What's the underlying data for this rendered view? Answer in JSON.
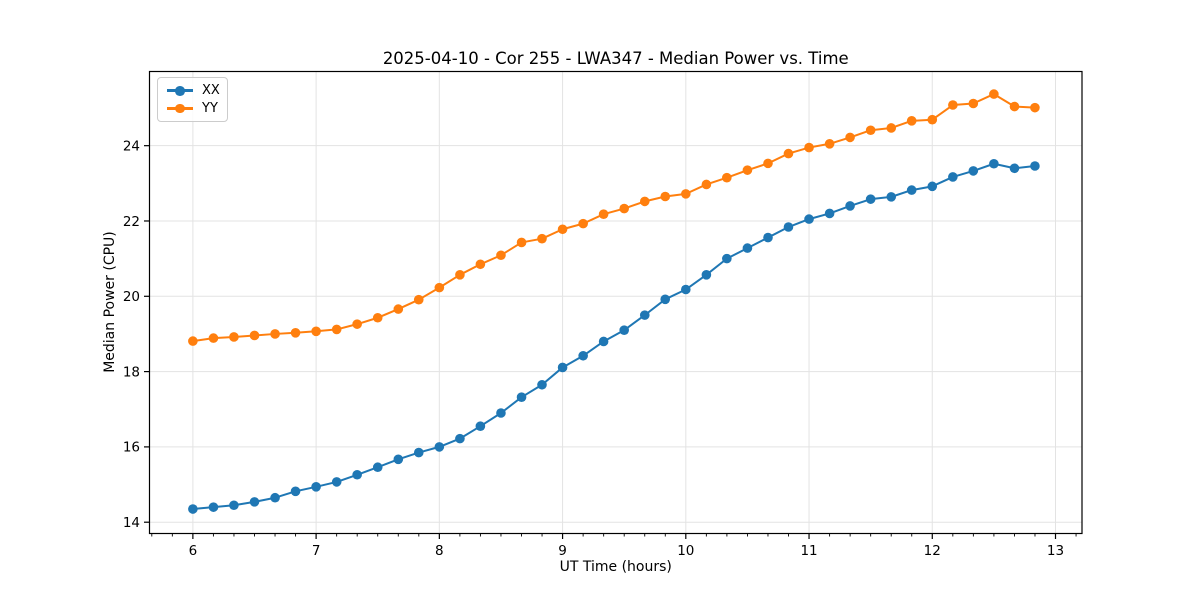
{
  "chart_data": {
    "type": "line",
    "title": "2025-04-10 - Cor 255 - LWA347 - Median Power vs. Time",
    "xlabel": "UT Time (hours)",
    "ylabel": "Median Power (CPU)",
    "xlim": [
      5.648,
      13.215
    ],
    "ylim": [
      13.7,
      25.97
    ],
    "x_ticks": [
      6,
      7,
      8,
      9,
      10,
      11,
      12,
      13
    ],
    "y_ticks": [
      14,
      16,
      18,
      20,
      22,
      24
    ],
    "x_minor_tick_step": 0.16667,
    "grid": true,
    "legend_position": "upper left",
    "marker": "circle",
    "x": [
      6.0,
      6.167,
      6.333,
      6.5,
      6.667,
      6.833,
      7.0,
      7.167,
      7.333,
      7.5,
      7.667,
      7.833,
      8.0,
      8.167,
      8.333,
      8.5,
      8.667,
      8.833,
      9.0,
      9.167,
      9.333,
      9.5,
      9.667,
      9.833,
      10.0,
      10.167,
      10.333,
      10.5,
      10.667,
      10.833,
      11.0,
      11.167,
      11.333,
      11.5,
      11.667,
      11.833,
      12.0,
      12.167,
      12.333,
      12.5,
      12.667,
      12.833
    ],
    "series": [
      {
        "name": "XX",
        "color": "#1f77b4",
        "values": [
          14.35,
          14.4,
          14.45,
          14.54,
          14.65,
          14.82,
          14.94,
          15.07,
          15.26,
          15.46,
          15.67,
          15.85,
          16.0,
          16.22,
          16.55,
          16.9,
          17.32,
          17.65,
          18.11,
          18.42,
          18.8,
          19.1,
          19.5,
          19.92,
          20.18,
          20.57,
          21.0,
          21.28,
          21.56,
          21.84,
          22.05,
          22.2,
          22.4,
          22.58,
          22.64,
          22.82,
          22.92,
          23.17,
          23.33,
          23.52,
          23.4,
          23.46
        ]
      },
      {
        "name": "YY",
        "color": "#ff7f0e",
        "values": [
          18.81,
          18.89,
          18.92,
          18.96,
          19.0,
          19.03,
          19.07,
          19.12,
          19.26,
          19.43,
          19.66,
          19.91,
          20.23,
          20.57,
          20.85,
          21.09,
          21.43,
          21.53,
          21.78,
          21.93,
          22.18,
          22.33,
          22.52,
          22.65,
          22.72,
          22.97,
          23.15,
          23.35,
          23.53,
          23.79,
          23.95,
          24.05,
          24.22,
          24.41,
          24.47,
          24.66,
          24.69,
          25.08,
          25.12,
          25.37,
          25.04,
          25.01
        ]
      }
    ],
    "colors": {
      "grid": "#e3e3e3",
      "spine": "#000000",
      "tick": "#000000",
      "background": "#ffffff",
      "legend_border": "#cccccc"
    }
  }
}
